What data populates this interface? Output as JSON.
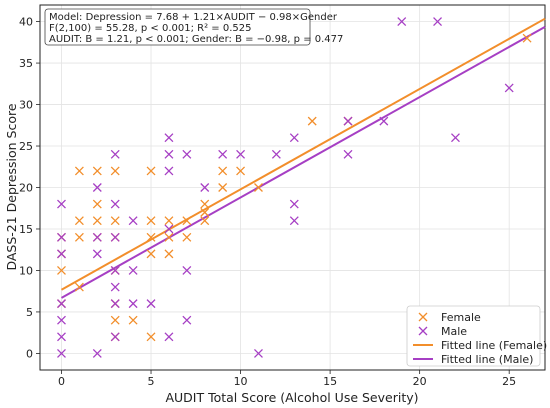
{
  "chart_data": {
    "type": "scatter",
    "xlabel": "AUDIT Total Score (Alcohol Use Severity)",
    "ylabel": "DASS-21 Depression Score",
    "xlim": [
      -1.2,
      27
    ],
    "ylim": [
      -2,
      42
    ],
    "x_ticks": [
      0,
      5,
      10,
      15,
      20,
      25
    ],
    "y_ticks": [
      0,
      5,
      10,
      15,
      20,
      25,
      30,
      35,
      40
    ],
    "grid": true,
    "legend_position": "bottom-right",
    "annotation_lines": [
      "Model: Depression = 7.68 + 1.21×AUDIT − 0.98×Gender",
      "F(2,100) = 55.28, p < 0.001; R² = 0.525",
      "AUDIT: B = 1.21, p < 0.001; Gender: B = −0.98, p = 0.477"
    ],
    "series": [
      {
        "name": "Female",
        "marker": "x",
        "color": "#f28e2b",
        "points": [
          [
            0,
            14
          ],
          [
            0,
            12
          ],
          [
            0,
            10
          ],
          [
            0,
            6
          ],
          [
            1,
            22
          ],
          [
            1,
            16
          ],
          [
            1,
            14
          ],
          [
            1,
            8
          ],
          [
            2,
            22
          ],
          [
            2,
            18
          ],
          [
            2,
            16
          ],
          [
            2,
            14
          ],
          [
            3,
            22
          ],
          [
            3,
            16
          ],
          [
            3,
            14
          ],
          [
            3,
            10
          ],
          [
            3,
            6
          ],
          [
            3,
            4
          ],
          [
            3,
            2
          ],
          [
            4,
            4
          ],
          [
            5,
            22
          ],
          [
            5,
            16
          ],
          [
            5,
            14
          ],
          [
            5,
            12
          ],
          [
            5,
            2
          ],
          [
            6,
            16
          ],
          [
            6,
            14
          ],
          [
            6,
            12
          ],
          [
            7,
            16
          ],
          [
            7,
            14
          ],
          [
            8,
            18
          ],
          [
            8,
            17
          ],
          [
            8,
            16
          ],
          [
            9,
            22
          ],
          [
            9,
            20
          ],
          [
            10,
            22
          ],
          [
            11,
            20
          ],
          [
            14,
            28
          ],
          [
            16,
            28
          ],
          [
            26,
            38
          ]
        ]
      },
      {
        "name": "Male",
        "marker": "x",
        "color": "#a63fc4",
        "points": [
          [
            0,
            18
          ],
          [
            0,
            14
          ],
          [
            0,
            12
          ],
          [
            0,
            6
          ],
          [
            0,
            4
          ],
          [
            0,
            2
          ],
          [
            0,
            0
          ],
          [
            2,
            20
          ],
          [
            2,
            14
          ],
          [
            2,
            12
          ],
          [
            2,
            0
          ],
          [
            3,
            24
          ],
          [
            3,
            18
          ],
          [
            3,
            14
          ],
          [
            3,
            10
          ],
          [
            3,
            8
          ],
          [
            3,
            6
          ],
          [
            3,
            2
          ],
          [
            4,
            16
          ],
          [
            4,
            10
          ],
          [
            4,
            6
          ],
          [
            5,
            6
          ],
          [
            6,
            26
          ],
          [
            6,
            24
          ],
          [
            6,
            22
          ],
          [
            6,
            15
          ],
          [
            6,
            2
          ],
          [
            7,
            24
          ],
          [
            7,
            10
          ],
          [
            7,
            4
          ],
          [
            8,
            20
          ],
          [
            9,
            24
          ],
          [
            10,
            24
          ],
          [
            11,
            0
          ],
          [
            12,
            24
          ],
          [
            13,
            26
          ],
          [
            13,
            18
          ],
          [
            13,
            16
          ],
          [
            16,
            28
          ],
          [
            16,
            24
          ],
          [
            18,
            28
          ],
          [
            19,
            40
          ],
          [
            21,
            40
          ],
          [
            22,
            26
          ],
          [
            25,
            32
          ]
        ]
      }
    ],
    "fitted_lines": [
      {
        "name": "Fitted line (Female)",
        "color": "#f28e2b",
        "intercept": 7.68,
        "slope": 1.21
      },
      {
        "name": "Fitted line (Male)",
        "color": "#a63fc4",
        "intercept": 6.7,
        "slope": 1.21
      }
    ]
  }
}
